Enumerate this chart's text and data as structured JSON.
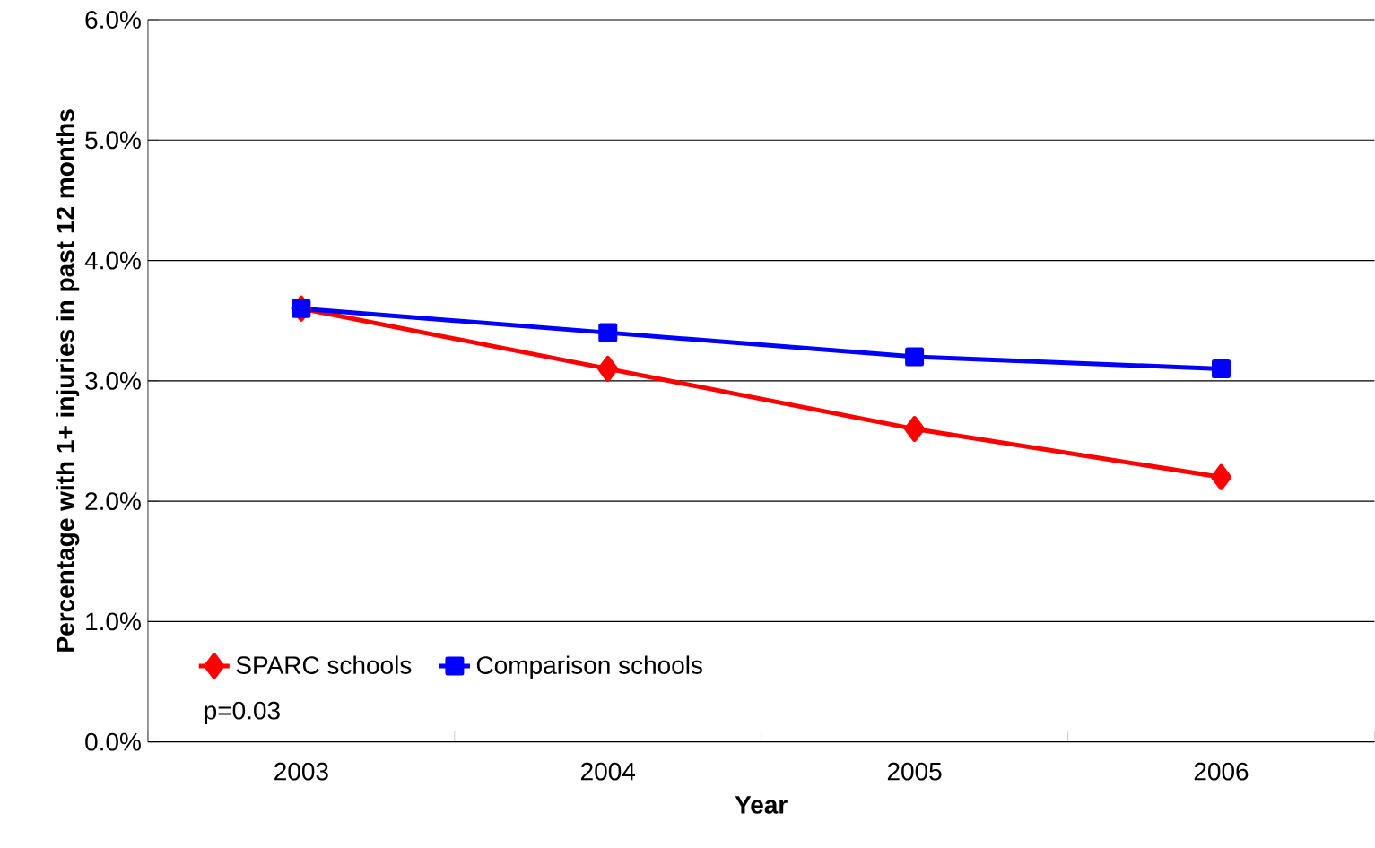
{
  "chart_data": {
    "type": "line",
    "xlabel": "Year",
    "ylabel": "Percentage with 1+ injuries in past 12 months",
    "categories": [
      "2003",
      "2004",
      "2005",
      "2006"
    ],
    "series": [
      {
        "name": "SPARC schools",
        "color": "#ff0000",
        "marker": "diamond",
        "values": [
          3.6,
          3.1,
          2.6,
          2.2
        ]
      },
      {
        "name": "Comparison schools",
        "color": "#0000ff",
        "marker": "square",
        "values": [
          3.6,
          3.4,
          3.2,
          3.1
        ]
      }
    ],
    "ylim": [
      0,
      6
    ],
    "yticks": [
      {
        "value": 0,
        "label": "0.0%"
      },
      {
        "value": 1,
        "label": "1.0%"
      },
      {
        "value": 2,
        "label": "2.0%"
      },
      {
        "value": 3,
        "label": "3.0%"
      },
      {
        "value": 4,
        "label": "4.0%"
      },
      {
        "value": 5,
        "label": "5.0%"
      },
      {
        "value": 6,
        "label": "6.0%"
      }
    ],
    "grid": "y",
    "legend": "bottom left",
    "line_style": "solid",
    "annotations": [
      "p=0.03"
    ]
  }
}
